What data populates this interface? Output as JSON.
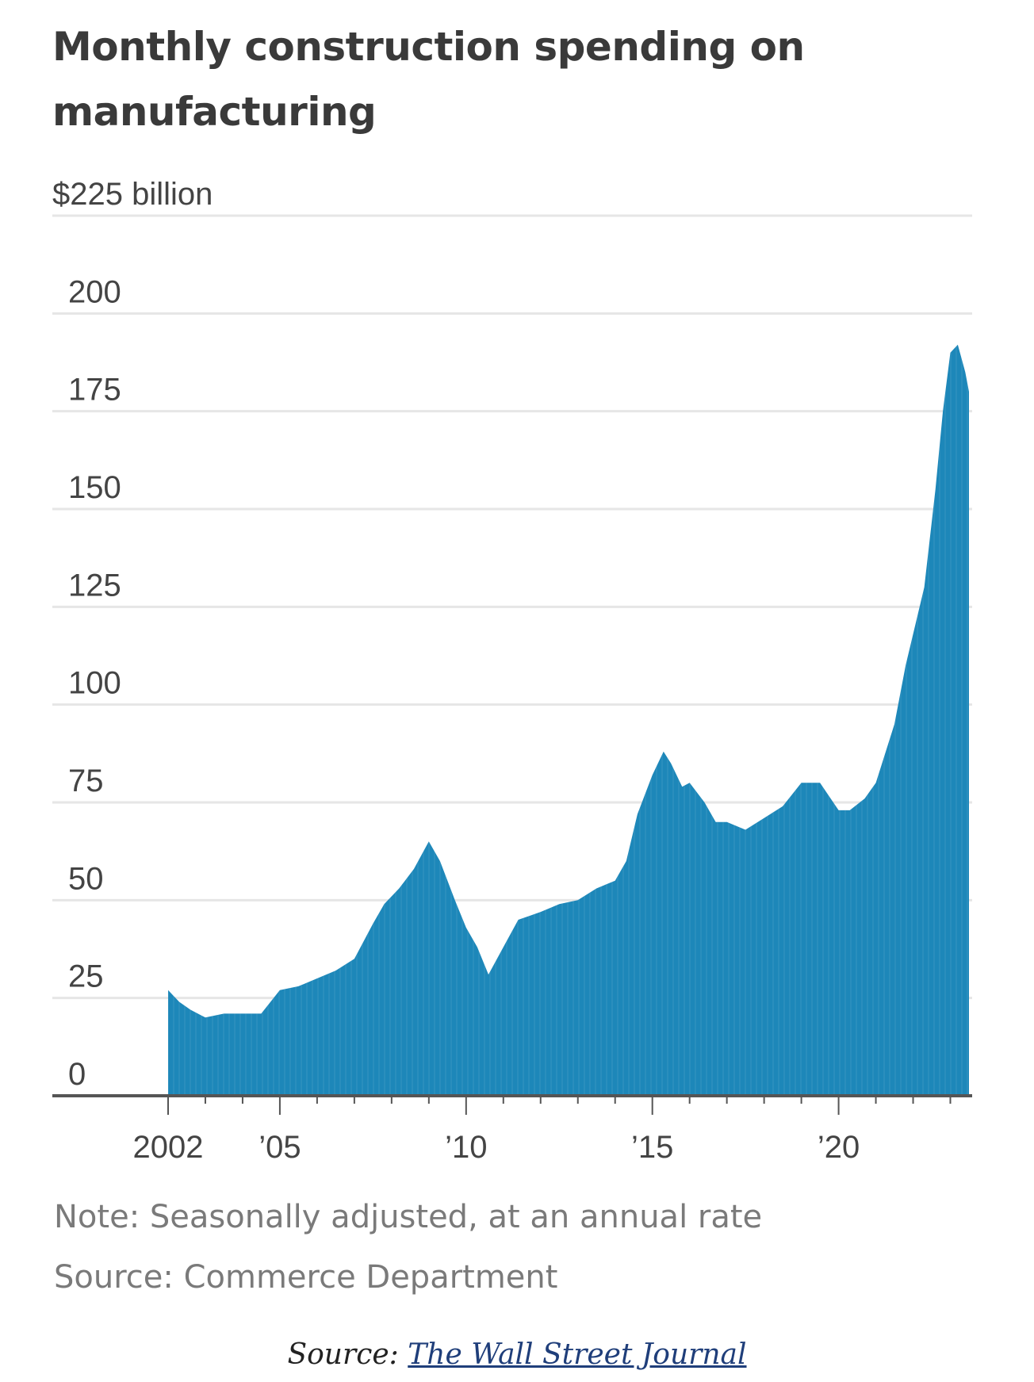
{
  "chart_data": {
    "type": "area",
    "title": "Monthly construction spending on manufacturing",
    "ylabel": "",
    "xlabel": "",
    "ylim": [
      0,
      225
    ],
    "xlim": [
      2002,
      2023.5
    ],
    "y_ticks": [
      0,
      25,
      50,
      75,
      100,
      125,
      150,
      175,
      200,
      225
    ],
    "y_tick_labels": [
      "0",
      "25",
      "50",
      "75",
      "100",
      "125",
      "150",
      "175",
      "200",
      "$225 billion"
    ],
    "x_ticks": [
      2002,
      2005,
      2010,
      2015,
      2020
    ],
    "x_tick_labels": [
      "2002",
      "’05",
      "’10",
      "’15",
      "’20"
    ],
    "grid": true,
    "series": [
      {
        "color": "#1d87b9",
        "x": [
          2002.0,
          2002.3,
          2002.6,
          2003.0,
          2003.5,
          2004.0,
          2004.5,
          2005.0,
          2005.5,
          2006.0,
          2006.5,
          2007.0,
          2007.5,
          2007.8,
          2008.2,
          2008.6,
          2009.0,
          2009.3,
          2009.7,
          2010.0,
          2010.3,
          2010.6,
          2011.0,
          2011.4,
          2011.7,
          2012.0,
          2012.5,
          2013.0,
          2013.5,
          2014.0,
          2014.3,
          2014.6,
          2015.0,
          2015.3,
          2015.5,
          2015.8,
          2016.0,
          2016.4,
          2016.7,
          2017.0,
          2017.5,
          2018.0,
          2018.5,
          2019.0,
          2019.5,
          2020.0,
          2020.3,
          2020.7,
          2021.0,
          2021.5,
          2021.8,
          2022.0,
          2022.3,
          2022.6,
          2022.8,
          2023.0,
          2023.2,
          2023.4,
          2023.5
        ],
        "values": [
          27,
          24,
          22,
          20,
          21,
          21,
          21,
          27,
          28,
          30,
          32,
          35,
          44,
          49,
          53,
          58,
          65,
          60,
          50,
          43,
          38,
          31,
          38,
          45,
          46,
          47,
          49,
          50,
          53,
          55,
          60,
          72,
          82,
          88,
          85,
          79,
          80,
          75,
          70,
          70,
          68,
          71,
          74,
          80,
          80,
          73,
          73,
          76,
          80,
          95,
          110,
          118,
          130,
          155,
          175,
          190,
          192,
          185,
          180
        ]
      }
    ],
    "note": "Note: Seasonally adjusted, at an annual rate",
    "source": "Source: Commerce Department"
  },
  "attribution": {
    "prefix": "Source: ",
    "link_text": "The Wall Street Journal"
  }
}
